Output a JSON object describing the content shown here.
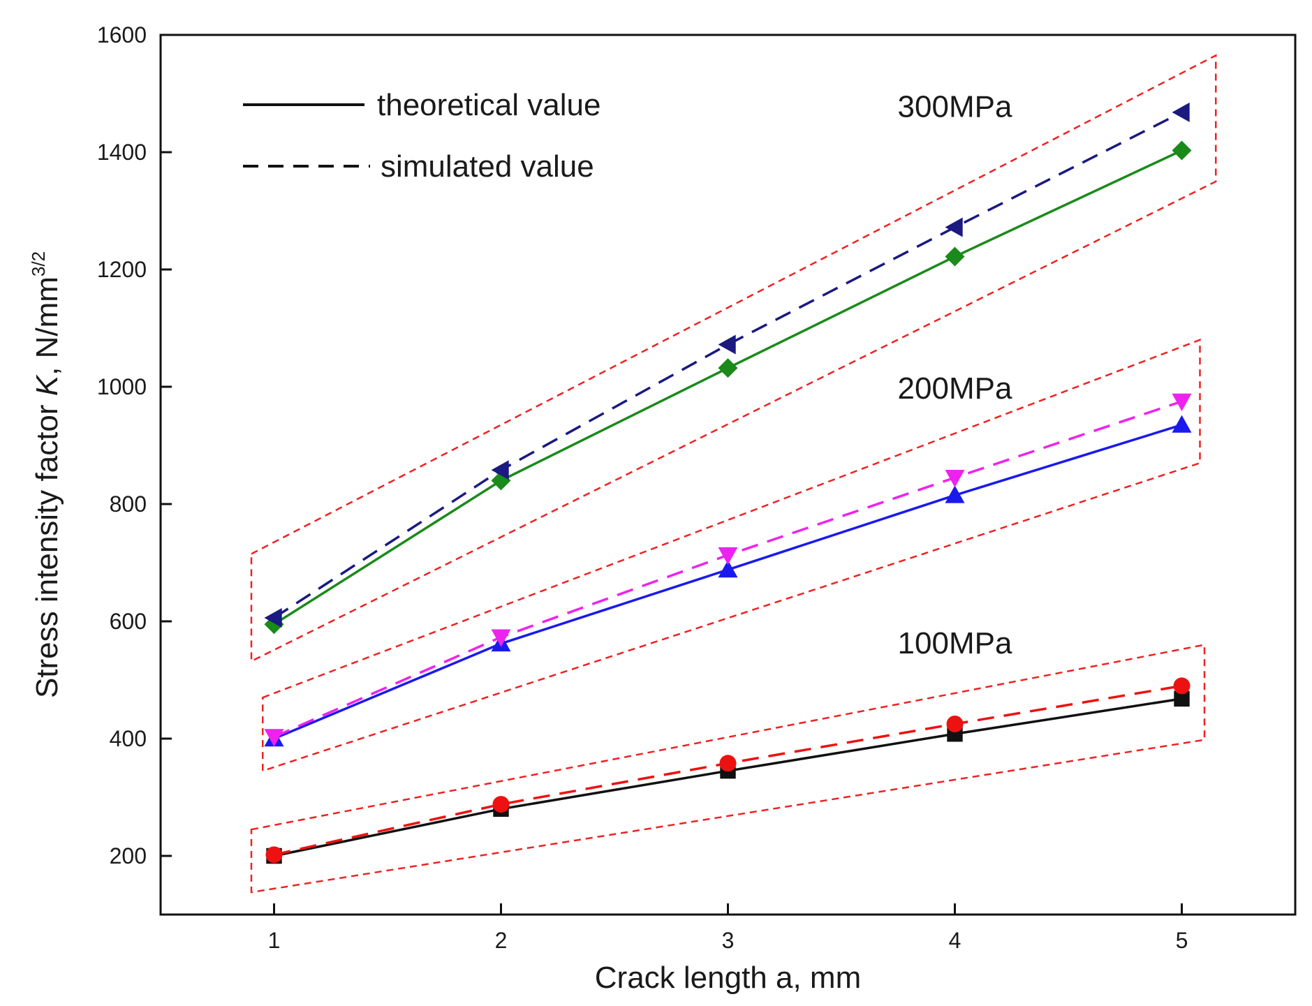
{
  "chart_data": {
    "type": "line",
    "title": "",
    "xlabel": "Crack length a, mm",
    "ylabel_prefix": "Stress intensity factor ",
    "ylabel_var": "K",
    "ylabel_suffix": ", N/mm",
    "ylabel_sup": "3/2",
    "x": [
      1,
      2,
      3,
      4,
      5
    ],
    "xlim": [
      0.5,
      5.5
    ],
    "ylim": [
      100,
      1600
    ],
    "xticks": [
      1,
      2,
      3,
      4,
      5
    ],
    "yticks": [
      200,
      400,
      600,
      800,
      1000,
      1200,
      1400,
      1600
    ],
    "legend": {
      "position": "top-left",
      "entries": [
        {
          "label": "theoretical value",
          "style": "solid"
        },
        {
          "label": "simulated value",
          "style": "dashed"
        }
      ]
    },
    "series": [
      {
        "name": "300MPa theoretical",
        "group": "300MPa",
        "kind": "theoretical",
        "color": "#1a8a1a",
        "marker": "diamond",
        "values": [
          595,
          840,
          1032,
          1222,
          1403
        ]
      },
      {
        "name": "300MPa simulated",
        "group": "300MPa",
        "kind": "simulated",
        "color": "#1a1a80",
        "marker": "triangle-left",
        "values": [
          606,
          858,
          1072,
          1272,
          1468
        ]
      },
      {
        "name": "200MPa theoretical",
        "group": "200MPa",
        "kind": "theoretical",
        "color": "#1a1aee",
        "marker": "triangle-up",
        "values": [
          400,
          562,
          688,
          815,
          935
        ]
      },
      {
        "name": "200MPa simulated",
        "group": "200MPa",
        "kind": "simulated",
        "color": "#ee22ee",
        "marker": "triangle-down",
        "values": [
          403,
          573,
          713,
          845,
          975
        ]
      },
      {
        "name": "100MPa theoretical",
        "group": "100MPa",
        "kind": "theoretical",
        "color": "#111111",
        "marker": "square",
        "values": [
          200,
          280,
          345,
          408,
          468
        ]
      },
      {
        "name": "100MPa simulated",
        "group": "100MPa",
        "kind": "simulated",
        "color": "#ee1111",
        "marker": "circle",
        "values": [
          202,
          288,
          358,
          425,
          490
        ]
      }
    ],
    "bands": [
      {
        "label": "300MPa",
        "color": "#ee2222",
        "x_range": [
          0.9,
          5.15
        ],
        "upper": [
          715,
          1565
        ],
        "lower": [
          532,
          1350
        ],
        "label_at": [
          4.0,
          1460
        ]
      },
      {
        "label": "200MPa",
        "color": "#ee2222",
        "x_range": [
          0.95,
          5.08
        ],
        "upper": [
          470,
          1080
        ],
        "lower": [
          345,
          870
        ],
        "label_at": [
          4.0,
          980
        ]
      },
      {
        "label": "100MPa",
        "color": "#ee2222",
        "x_range": [
          0.9,
          5.1
        ],
        "upper": [
          245,
          560
        ],
        "lower": [
          138,
          398
        ],
        "label_at": [
          4.0,
          545
        ]
      }
    ]
  }
}
